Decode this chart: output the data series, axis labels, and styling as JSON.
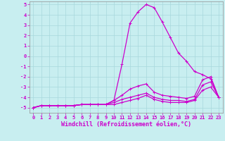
{
  "bg_color": "#c8eef0",
  "grid_color": "#a8d8dc",
  "line_color": "#cc00cc",
  "xlabel": "Windchill (Refroidissement éolien,°C)",
  "xlim": [
    -0.5,
    23.5
  ],
  "ylim": [
    -5.5,
    5.3
  ],
  "xticks": [
    0,
    1,
    2,
    3,
    4,
    5,
    6,
    7,
    8,
    9,
    10,
    11,
    12,
    13,
    14,
    15,
    16,
    17,
    18,
    19,
    20,
    21,
    22,
    23
  ],
  "yticks": [
    -5,
    -4,
    -3,
    -2,
    -1,
    0,
    1,
    2,
    3,
    4,
    5
  ],
  "line1_x": [
    0,
    1,
    2,
    3,
    4,
    5,
    6,
    7,
    8,
    9,
    10,
    11,
    12,
    13,
    14,
    15,
    16,
    17,
    18,
    19,
    20,
    21,
    22,
    23
  ],
  "line1_y": [
    -5.0,
    -4.8,
    -4.8,
    -4.8,
    -4.8,
    -4.8,
    -4.7,
    -4.7,
    -4.7,
    -4.7,
    -4.3,
    -0.8,
    3.2,
    4.3,
    5.0,
    4.7,
    3.3,
    1.8,
    0.3,
    -0.5,
    -1.5,
    -1.8,
    -2.2,
    -4.0
  ],
  "line2_x": [
    0,
    1,
    2,
    3,
    4,
    5,
    6,
    7,
    8,
    9,
    10,
    11,
    12,
    13,
    14,
    15,
    16,
    17,
    18,
    19,
    20,
    21,
    22,
    23
  ],
  "line2_y": [
    -5.0,
    -4.8,
    -4.8,
    -4.8,
    -4.8,
    -4.8,
    -4.7,
    -4.7,
    -4.7,
    -4.7,
    -4.3,
    -3.8,
    -3.2,
    -2.9,
    -2.7,
    -3.5,
    -3.8,
    -3.9,
    -4.0,
    -4.1,
    -3.9,
    -2.3,
    -2.0,
    -4.0
  ],
  "line3_x": [
    0,
    1,
    2,
    3,
    4,
    5,
    6,
    7,
    8,
    9,
    10,
    11,
    12,
    13,
    14,
    15,
    16,
    17,
    18,
    19,
    20,
    21,
    22,
    23
  ],
  "line3_y": [
    -5.0,
    -4.8,
    -4.8,
    -4.8,
    -4.8,
    -4.8,
    -4.7,
    -4.7,
    -4.7,
    -4.7,
    -4.5,
    -4.2,
    -4.0,
    -3.8,
    -3.6,
    -4.0,
    -4.2,
    -4.3,
    -4.3,
    -4.4,
    -4.2,
    -2.8,
    -2.5,
    -4.0
  ],
  "line4_x": [
    0,
    1,
    2,
    3,
    4,
    5,
    6,
    7,
    8,
    9,
    10,
    11,
    12,
    13,
    14,
    15,
    16,
    17,
    18,
    19,
    20,
    21,
    22,
    23
  ],
  "line4_y": [
    -5.0,
    -4.8,
    -4.8,
    -4.8,
    -4.8,
    -4.8,
    -4.7,
    -4.7,
    -4.7,
    -4.7,
    -4.7,
    -4.5,
    -4.3,
    -4.1,
    -3.8,
    -4.2,
    -4.4,
    -4.5,
    -4.5,
    -4.5,
    -4.3,
    -3.3,
    -3.0,
    -4.0
  ],
  "marker_size": 2.5,
  "line_width": 0.9,
  "tick_fontsize": 5.0,
  "xlabel_fontsize": 6.0
}
